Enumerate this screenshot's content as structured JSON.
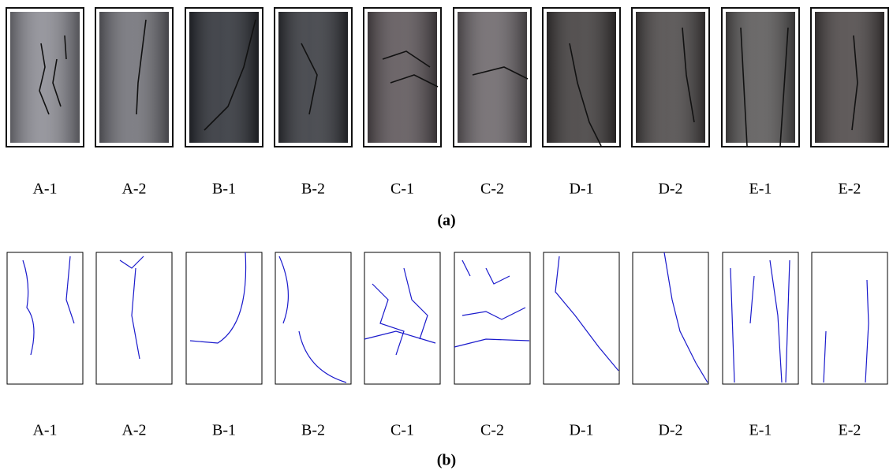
{
  "panels": [
    {
      "labels": [
        "A-1",
        "A-2",
        "B-1",
        "B-2",
        "C-1",
        "C-2",
        "D-1",
        "D-2",
        "E-1",
        "E-2"
      ],
      "caption": "(a)"
    },
    {
      "labels": [
        "A-1",
        "A-2",
        "B-1",
        "B-2",
        "C-1",
        "C-2",
        "D-1",
        "D-2",
        "E-1",
        "E-2"
      ],
      "caption": "(b)"
    }
  ]
}
